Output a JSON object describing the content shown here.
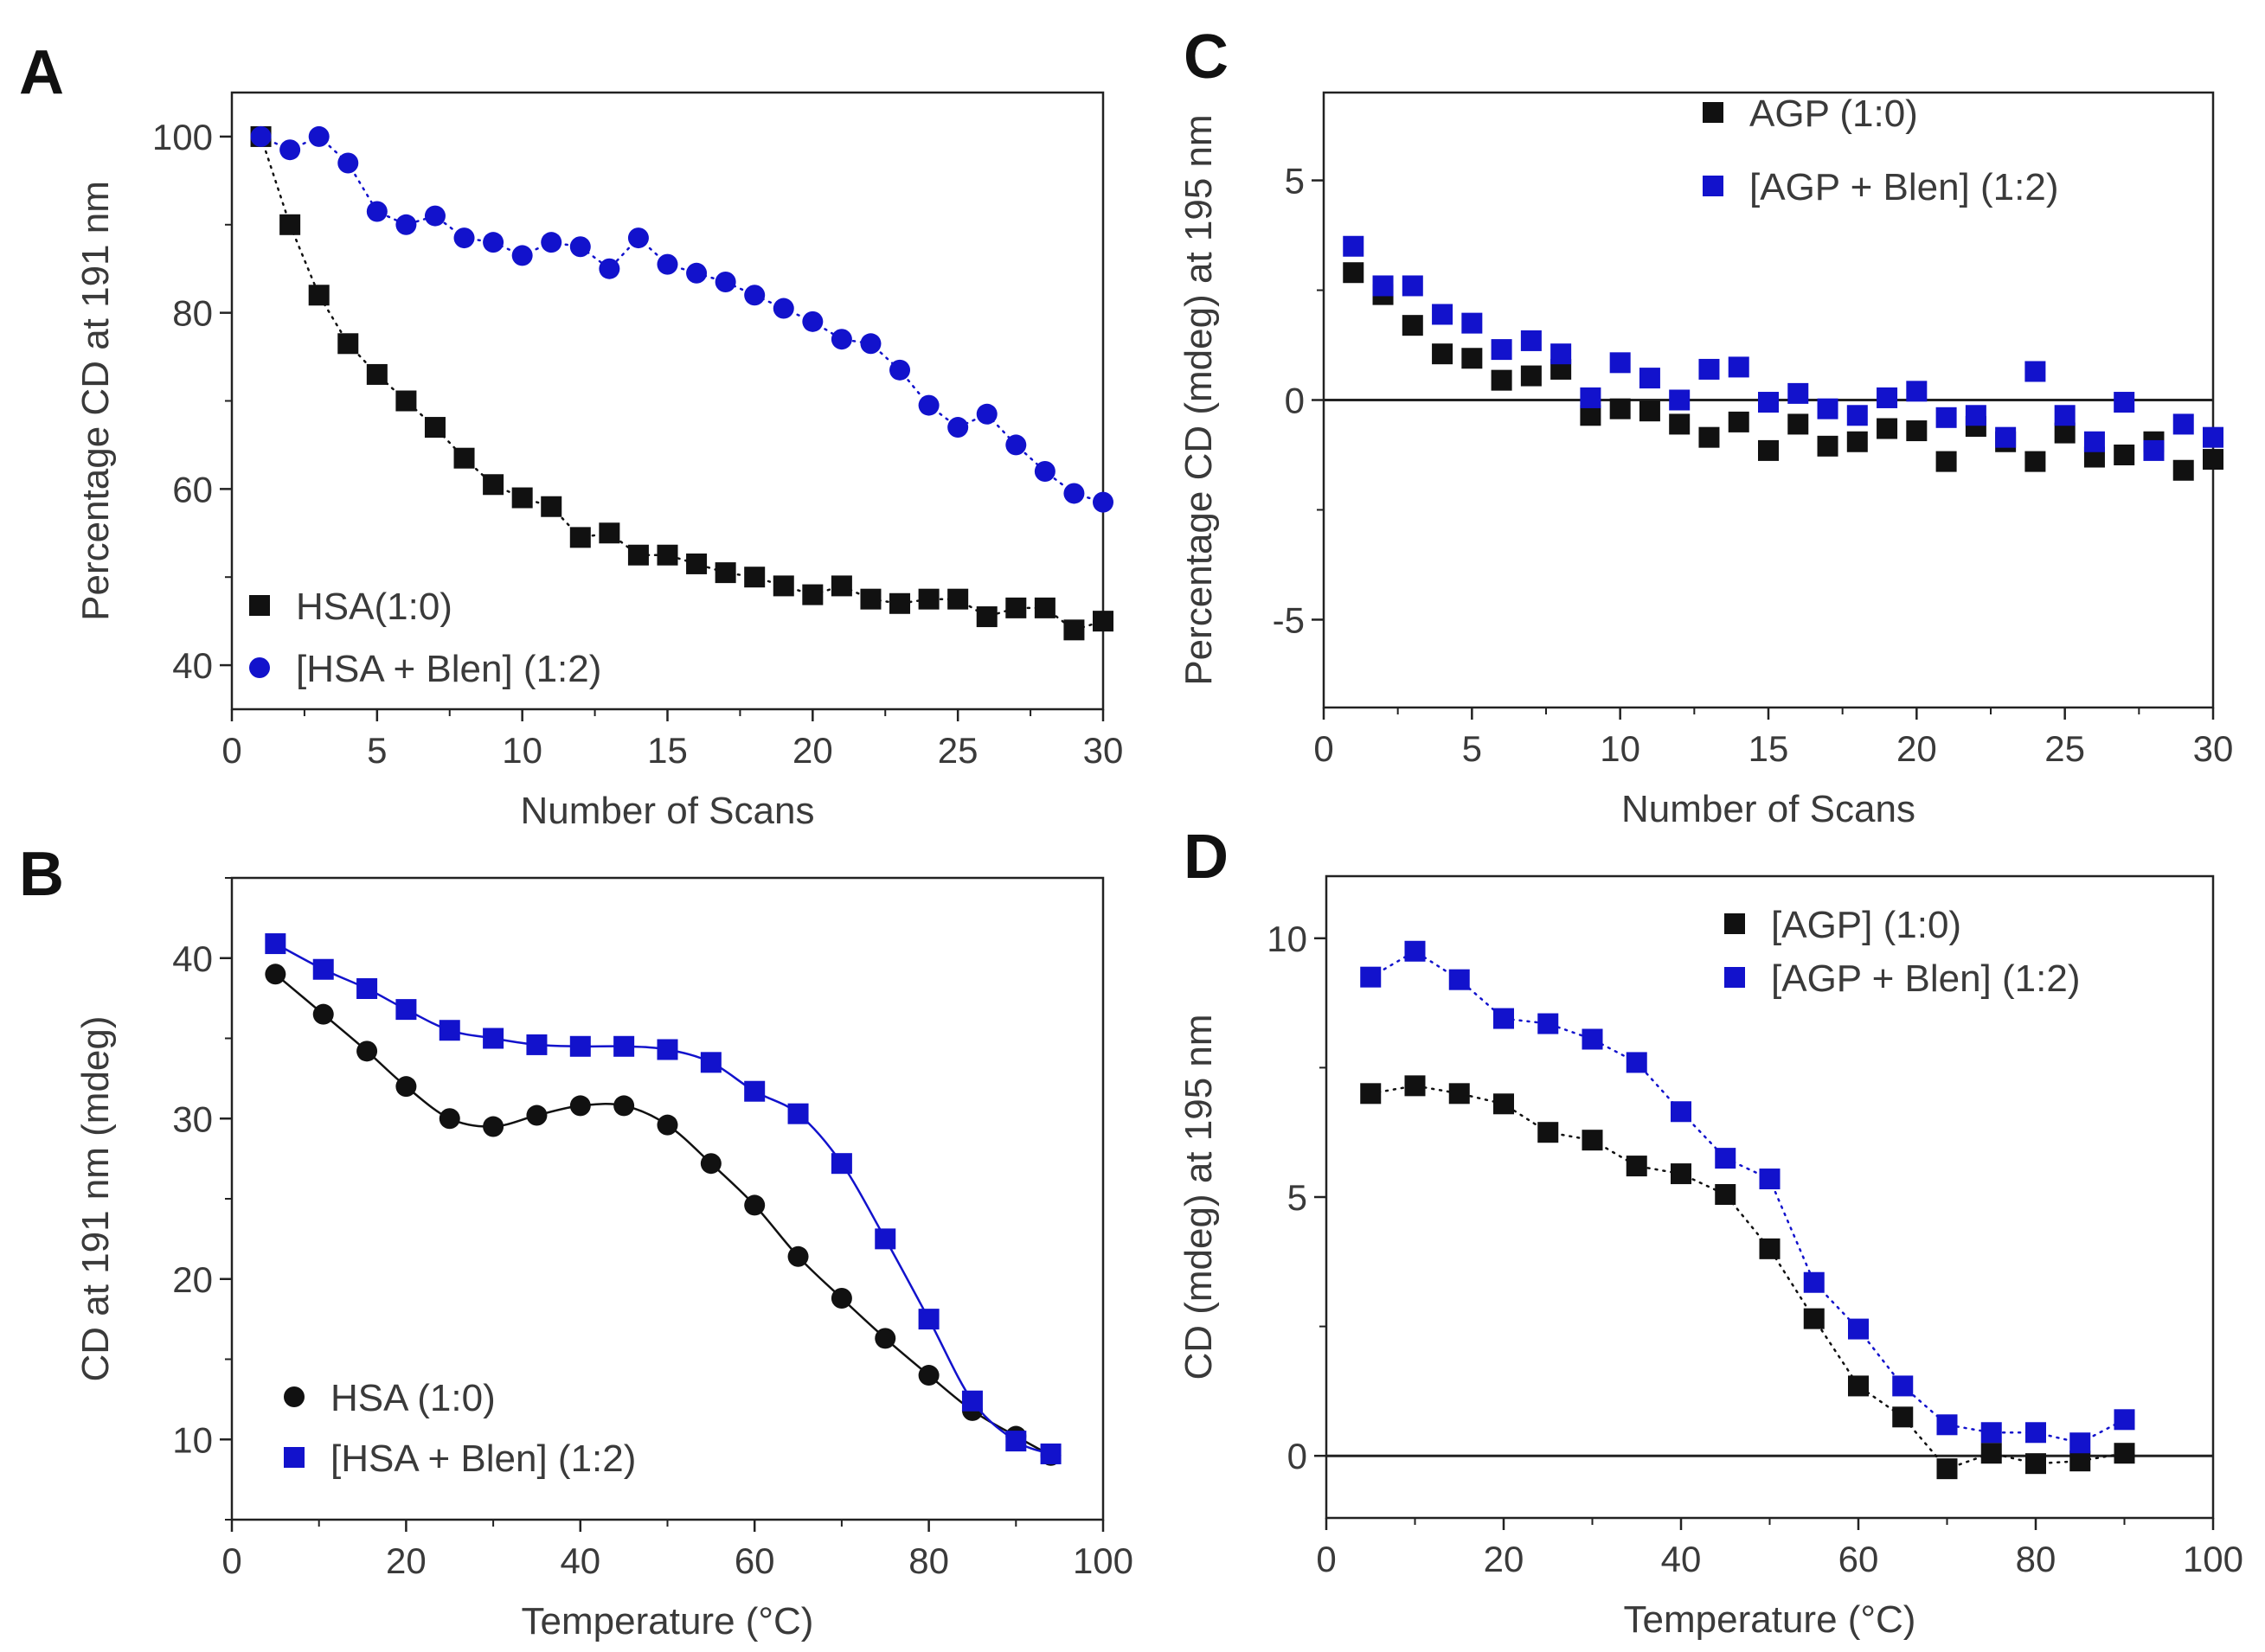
{
  "colors": {
    "black_series": "#111111",
    "blue_series": "#1212cc",
    "axis": "#222222"
  },
  "chart_data": [
    {
      "panel": "A",
      "type": "scatter",
      "xlabel": "Number of Scans",
      "ylabel": "Percentage CD at 191 nm",
      "xlim": [
        0,
        30
      ],
      "ylim": [
        35,
        105
      ],
      "xticks": [
        0,
        5,
        10,
        15,
        20,
        25,
        30
      ],
      "yticks": [
        40,
        60,
        80,
        100
      ],
      "zero_line": false,
      "legend_position": "bottom-left",
      "series": [
        {
          "name": "HSA(1:0)",
          "marker": "square",
          "color": "black",
          "connector": "dotted",
          "x": [
            1,
            2,
            3,
            4,
            5,
            6,
            7,
            8,
            9,
            10,
            11,
            12,
            13,
            14,
            15,
            16,
            17,
            18,
            19,
            20,
            21,
            22,
            23,
            24,
            25,
            26,
            27,
            28,
            29,
            30
          ],
          "y": [
            100,
            90,
            82,
            76.5,
            73,
            70,
            67,
            63.5,
            60.5,
            59,
            58,
            54.5,
            55,
            52.5,
            52.5,
            51.5,
            50.5,
            50,
            49,
            48,
            49,
            47.5,
            47,
            47.5,
            47.5,
            45.5,
            46.5,
            46.5,
            44,
            45
          ]
        },
        {
          "name": "[HSA + Blen] (1:2)",
          "marker": "circle",
          "color": "blue",
          "connector": "dotted",
          "x": [
            1,
            2,
            3,
            4,
            5,
            6,
            7,
            8,
            9,
            10,
            11,
            12,
            13,
            14,
            15,
            16,
            17,
            18,
            19,
            20,
            21,
            22,
            23,
            24,
            25,
            26,
            27,
            28,
            29,
            30
          ],
          "y": [
            100,
            98.5,
            100,
            97,
            91.5,
            90,
            91,
            88.5,
            88,
            86.5,
            88,
            87.5,
            85,
            88.5,
            85.5,
            84.5,
            83.5,
            82,
            80.5,
            79,
            77,
            76.5,
            73.5,
            69.5,
            67,
            68.5,
            65,
            62,
            59.5,
            58.5
          ]
        }
      ]
    },
    {
      "panel": "C",
      "type": "scatter",
      "xlabel": "Number of Scans",
      "ylabel": "Percentage CD (mdeg) at 195 nm",
      "xlim": [
        0,
        30
      ],
      "ylim": [
        -7,
        7
      ],
      "xticks": [
        0,
        5,
        10,
        15,
        20,
        25,
        30
      ],
      "yticks": [
        -5,
        0,
        5
      ],
      "zero_line": true,
      "legend_position": "top-right",
      "series": [
        {
          "name": "AGP (1:0)",
          "marker": "square",
          "color": "black",
          "connector": "none",
          "x": [
            1,
            2,
            3,
            4,
            5,
            6,
            7,
            8,
            9,
            10,
            11,
            12,
            13,
            14,
            15,
            16,
            17,
            18,
            19,
            20,
            21,
            22,
            23,
            24,
            25,
            26,
            27,
            28,
            29,
            30
          ],
          "y": [
            2.9,
            2.4,
            1.7,
            1.05,
            0.95,
            0.45,
            0.55,
            0.7,
            -0.35,
            -0.2,
            -0.25,
            -0.55,
            -0.85,
            -0.5,
            -1.15,
            -0.55,
            -1.05,
            -0.95,
            -0.65,
            -0.7,
            -1.4,
            -0.6,
            -0.95,
            -1.4,
            -0.75,
            -1.3,
            -1.25,
            -0.95,
            -1.6,
            -1.35
          ]
        },
        {
          "name": "[AGP + Blen] (1:2)",
          "marker": "square",
          "color": "blue",
          "connector": "none",
          "x": [
            1,
            2,
            3,
            4,
            5,
            6,
            7,
            8,
            9,
            10,
            11,
            12,
            13,
            14,
            15,
            16,
            17,
            18,
            19,
            20,
            21,
            22,
            23,
            24,
            25,
            26,
            27,
            28,
            29,
            30
          ],
          "y": [
            3.5,
            2.6,
            2.6,
            1.95,
            1.75,
            1.15,
            1.35,
            1.05,
            0.05,
            0.85,
            0.5,
            0.0,
            0.7,
            0.75,
            -0.05,
            0.15,
            -0.2,
            -0.35,
            0.05,
            0.2,
            -0.4,
            -0.35,
            -0.85,
            0.65,
            -0.35,
            -0.95,
            -0.05,
            -1.15,
            -0.55,
            -0.85
          ]
        }
      ]
    },
    {
      "panel": "B",
      "type": "line",
      "xlabel": "Temperature (°C)",
      "ylabel": "CD at 191 nm  (mdeg)",
      "xlim": [
        0,
        100
      ],
      "ylim": [
        5,
        45
      ],
      "xticks": [
        0,
        20,
        40,
        60,
        80,
        100
      ],
      "yticks": [
        10,
        20,
        30,
        40
      ],
      "zero_line": false,
      "legend_position": "bottom-left",
      "series": [
        {
          "name": "HSA (1:0)",
          "marker": "circle",
          "color": "black",
          "connector": "smooth",
          "x": [
            5,
            10.5,
            15.5,
            20,
            25,
            30,
            35,
            40,
            45,
            50,
            55,
            60,
            65,
            70,
            75,
            80,
            85,
            90,
            94
          ],
          "y": [
            39,
            36.5,
            34.2,
            32,
            30,
            29.5,
            30.2,
            30.8,
            30.8,
            29.6,
            27.2,
            24.6,
            21.4,
            18.8,
            16.3,
            14,
            11.8,
            10.2,
            9
          ]
        },
        {
          "name": "[HSA + Blen] (1:2)",
          "marker": "square",
          "color": "blue",
          "connector": "smooth",
          "x": [
            5,
            10.5,
            15.5,
            20,
            25,
            30,
            35,
            40,
            45,
            50,
            55,
            60,
            65,
            70,
            75,
            80,
            85,
            90,
            94
          ],
          "y": [
            40.9,
            39.3,
            38.1,
            36.8,
            35.5,
            35,
            34.6,
            34.5,
            34.5,
            34.3,
            33.5,
            31.7,
            30.3,
            27.2,
            22.5,
            17.5,
            12.4,
            9.9,
            9.1
          ]
        }
      ]
    },
    {
      "panel": "D",
      "type": "scatter",
      "xlabel": "Temperature (°C)",
      "ylabel": "CD (mdeg) at 195 nm",
      "xlim": [
        0,
        100
      ],
      "ylim": [
        -1.2,
        11.2
      ],
      "xticks": [
        0,
        20,
        40,
        60,
        80,
        100
      ],
      "yticks": [
        0,
        5,
        10
      ],
      "zero_line": true,
      "legend_position": "top-right",
      "series": [
        {
          "name": "[AGP] (1:0)",
          "marker": "square",
          "color": "black",
          "connector": "dotted",
          "x": [
            5,
            10,
            15,
            20,
            25,
            30,
            35,
            40,
            45,
            50,
            55,
            60,
            65,
            70,
            75,
            80,
            85,
            90
          ],
          "y": [
            7,
            7.15,
            7,
            6.8,
            6.25,
            6.1,
            5.6,
            5.45,
            5.05,
            4,
            2.65,
            1.35,
            0.75,
            -0.25,
            0.05,
            -0.15,
            -0.1,
            0.05
          ]
        },
        {
          "name": "[AGP + Blen] (1:2)",
          "marker": "square",
          "color": "blue",
          "connector": "dotted",
          "x": [
            5,
            10,
            15,
            20,
            25,
            30,
            35,
            40,
            45,
            50,
            55,
            60,
            65,
            70,
            75,
            80,
            85,
            90
          ],
          "y": [
            9.25,
            9.75,
            9.2,
            8.45,
            8.35,
            8.05,
            7.6,
            6.65,
            5.75,
            5.35,
            3.35,
            2.45,
            1.35,
            0.6,
            0.45,
            0.45,
            0.25,
            0.7
          ]
        }
      ]
    }
  ]
}
